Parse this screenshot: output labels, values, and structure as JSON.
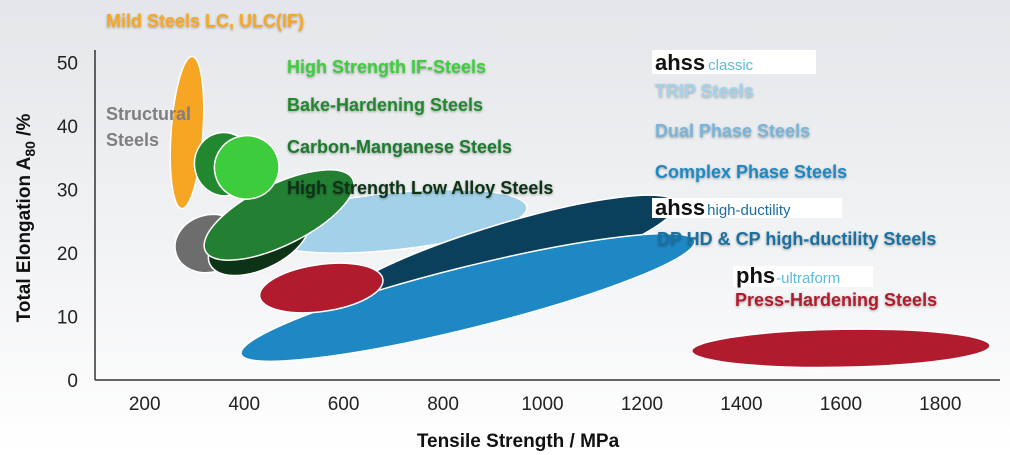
{
  "chart_data": {
    "type": "bubble-region",
    "xlabel": "Tensile Strength / MPa",
    "ylabel_main": "Total Elongation A",
    "ylabel_sub": "80",
    "ylabel_unit": " /%",
    "xlim": [
      100,
      1920
    ],
    "ylim": [
      0,
      52
    ],
    "x_ticks": [
      200,
      400,
      600,
      800,
      1000,
      1200,
      1400,
      1600,
      1800
    ],
    "y_ticks": [
      0,
      10,
      20,
      30,
      40,
      50
    ],
    "grid": false,
    "regions": [
      {
        "name": "TRIP Steels",
        "color": "#a3d1ea",
        "cx": 700,
        "cy": 25,
        "rx": 270,
        "ry": 4.5,
        "angle": -6
      },
      {
        "name": "Mild Steels LC, ULC(IF)",
        "color": "#f6a623",
        "cx": 285,
        "cy": 39,
        "rx": 32,
        "ry": 12,
        "angle": 4
      },
      {
        "name": "Structural Steels",
        "color": "#6d6d6d",
        "cx": 330,
        "cy": 21.5,
        "rx": 70,
        "ry": 4.5,
        "angle": -16
      },
      {
        "name": "High Strength Low Alloy Steels",
        "color": "#0d3317",
        "cx": 430,
        "cy": 22,
        "rx": 110,
        "ry": 4.5,
        "angle": -26
      },
      {
        "name": "Carbon-Manganese Steels",
        "color": "#238033",
        "cx": 470,
        "cy": 26,
        "rx": 165,
        "ry": 4.8,
        "angle": -26
      },
      {
        "name": "Bake-Hardening Steels",
        "color": "#22882f",
        "cx": 360,
        "cy": 34,
        "rx": 60,
        "ry": 5,
        "angle": -10
      },
      {
        "name": "High Strength IF-Steels",
        "color": "#3ccc3c",
        "cx": 405,
        "cy": 33.5,
        "rx": 65,
        "ry": 5,
        "angle": -14
      },
      {
        "name": "Complex Phase Steels",
        "color": "#0b405c",
        "cx": 920,
        "cy": 19.5,
        "rx": 365,
        "ry": 5,
        "angle": -17
      },
      {
        "name": "Dual Phase Steels",
        "color": "#1e88c4",
        "cx": 850,
        "cy": 13,
        "rx": 470,
        "ry": 4.8,
        "angle": -14
      },
      {
        "name": "Press-Hardening Steels",
        "color": "#b01c2e",
        "cx": 1600,
        "cy": 5,
        "rx": 300,
        "ry": 3,
        "angle": -1
      },
      {
        "name": "Press-Hardening Steels (low)",
        "color": "#b01c2e",
        "cx": 555,
        "cy": 14.5,
        "rx": 125,
        "ry": 3.7,
        "angle": -8
      }
    ]
  },
  "labels": {
    "mild": {
      "text": "Mild Steels LC, ULC(IF)",
      "color": "#f6a623"
    },
    "structural_line1": {
      "text": "Structural",
      "color": "#7f7f7f"
    },
    "structural_line2": {
      "text": "Steels",
      "color": "#7f7f7f"
    },
    "hs_if": {
      "text": "High Strength IF-Steels",
      "color": "#3ccc3c"
    },
    "bake": {
      "text": "Bake-Hardening Steels",
      "color": "#22882f"
    },
    "cmn": {
      "text": "Carbon-Manganese Steels",
      "color": "#1f7a2e"
    },
    "hsla": {
      "text": "High Strength Low Alloy Steels",
      "color": "#0d3317"
    },
    "trip": {
      "text": "TRIP Steels",
      "color": "#a3d1ea"
    },
    "dp": {
      "text": "Dual Phase Steels",
      "color": "#78b4d8"
    },
    "cp": {
      "text": "Complex Phase Steels",
      "color": "#1e88c4"
    },
    "dphd": {
      "text": "DP HD & CP high-ductility Steels",
      "color": "#1a6f9e"
    },
    "phs": {
      "text": "Press-Hardening Steels",
      "color": "#b01c2e"
    }
  },
  "brands": {
    "ahss_classic": {
      "main": "ahss",
      "sub": "classic",
      "sub_color": "#5bbbd9"
    },
    "ahss_hd": {
      "main": "ahss",
      "sub": "high-ductility",
      "sub_color": "#1a6f9e"
    },
    "phs": {
      "main": "phs",
      "sub": "-ultraform",
      "sub_color": "#5bbbd9"
    }
  }
}
